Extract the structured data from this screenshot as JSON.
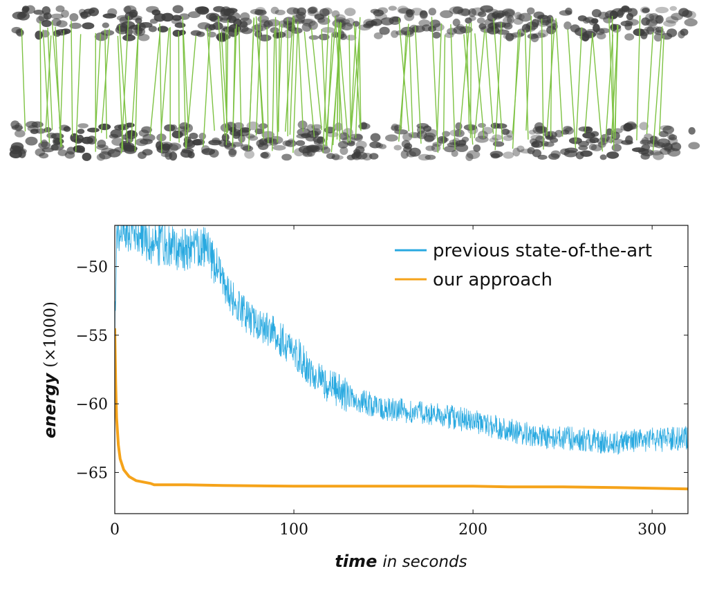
{
  "illustration": {
    "description_name": "cell correspondence matching figure",
    "cell_color": "#3c3c3c",
    "match_line_color": "#7dc242"
  },
  "chart_data": {
    "type": "line",
    "xlabel_main": "time",
    "xlabel_sub": "in seconds",
    "ylabel_main": "energy",
    "ylabel_sub": "(×1000)",
    "xlim": [
      0,
      320
    ],
    "ylim": [
      -68,
      -47
    ],
    "x_ticks": [
      0,
      100,
      200,
      300
    ],
    "y_ticks": [
      -50,
      -55,
      -60,
      -65
    ],
    "x_tick_labels": [
      "0",
      "100",
      "200",
      "300"
    ],
    "y_tick_labels": [
      "−50",
      "−55",
      "−60",
      "−65"
    ],
    "grid": false,
    "legend_position": "top-right",
    "series": [
      {
        "name": "previous state-of-the-art",
        "color": "#29a9e0",
        "noisy": true,
        "points": [
          [
            0,
            -55.0
          ],
          [
            1,
            -48.5
          ],
          [
            2,
            -47.3
          ],
          [
            5,
            -47.1
          ],
          [
            10,
            -47.6
          ],
          [
            20,
            -48.2
          ],
          [
            30,
            -48.6
          ],
          [
            40,
            -48.8
          ],
          [
            50,
            -48.6
          ],
          [
            55,
            -49.6
          ],
          [
            60,
            -51.0
          ],
          [
            65,
            -52.2
          ],
          [
            70,
            -53.2
          ],
          [
            80,
            -54.2
          ],
          [
            90,
            -55.0
          ],
          [
            100,
            -56.1
          ],
          [
            110,
            -57.6
          ],
          [
            120,
            -58.8
          ],
          [
            130,
            -59.4
          ],
          [
            140,
            -59.9
          ],
          [
            150,
            -60.4
          ],
          [
            160,
            -60.5
          ],
          [
            170,
            -60.6
          ],
          [
            180,
            -60.8
          ],
          [
            190,
            -61.0
          ],
          [
            200,
            -61.3
          ],
          [
            210,
            -61.6
          ],
          [
            220,
            -61.9
          ],
          [
            230,
            -62.2
          ],
          [
            240,
            -62.4
          ],
          [
            250,
            -62.5
          ],
          [
            260,
            -62.6
          ],
          [
            270,
            -62.7
          ],
          [
            280,
            -62.8
          ],
          [
            290,
            -62.7
          ],
          [
            300,
            -62.6
          ],
          [
            310,
            -62.6
          ],
          [
            320,
            -62.5
          ]
        ]
      },
      {
        "name": "our approach",
        "color": "#f5a31a",
        "noisy": false,
        "points": [
          [
            0,
            -54.5
          ],
          [
            0.5,
            -58.5
          ],
          [
            1,
            -61.0
          ],
          [
            2,
            -63.0
          ],
          [
            3,
            -64.0
          ],
          [
            5,
            -64.8
          ],
          [
            8,
            -65.3
          ],
          [
            12,
            -65.6
          ],
          [
            16,
            -65.7
          ],
          [
            20,
            -65.8
          ],
          [
            22,
            -65.9
          ],
          [
            40,
            -65.9
          ],
          [
            60,
            -65.95
          ],
          [
            100,
            -66.0
          ],
          [
            150,
            -66.0
          ],
          [
            200,
            -66.0
          ],
          [
            220,
            -66.05
          ],
          [
            250,
            -66.05
          ],
          [
            280,
            -66.1
          ],
          [
            300,
            -66.15
          ],
          [
            320,
            -66.2
          ]
        ]
      }
    ]
  }
}
